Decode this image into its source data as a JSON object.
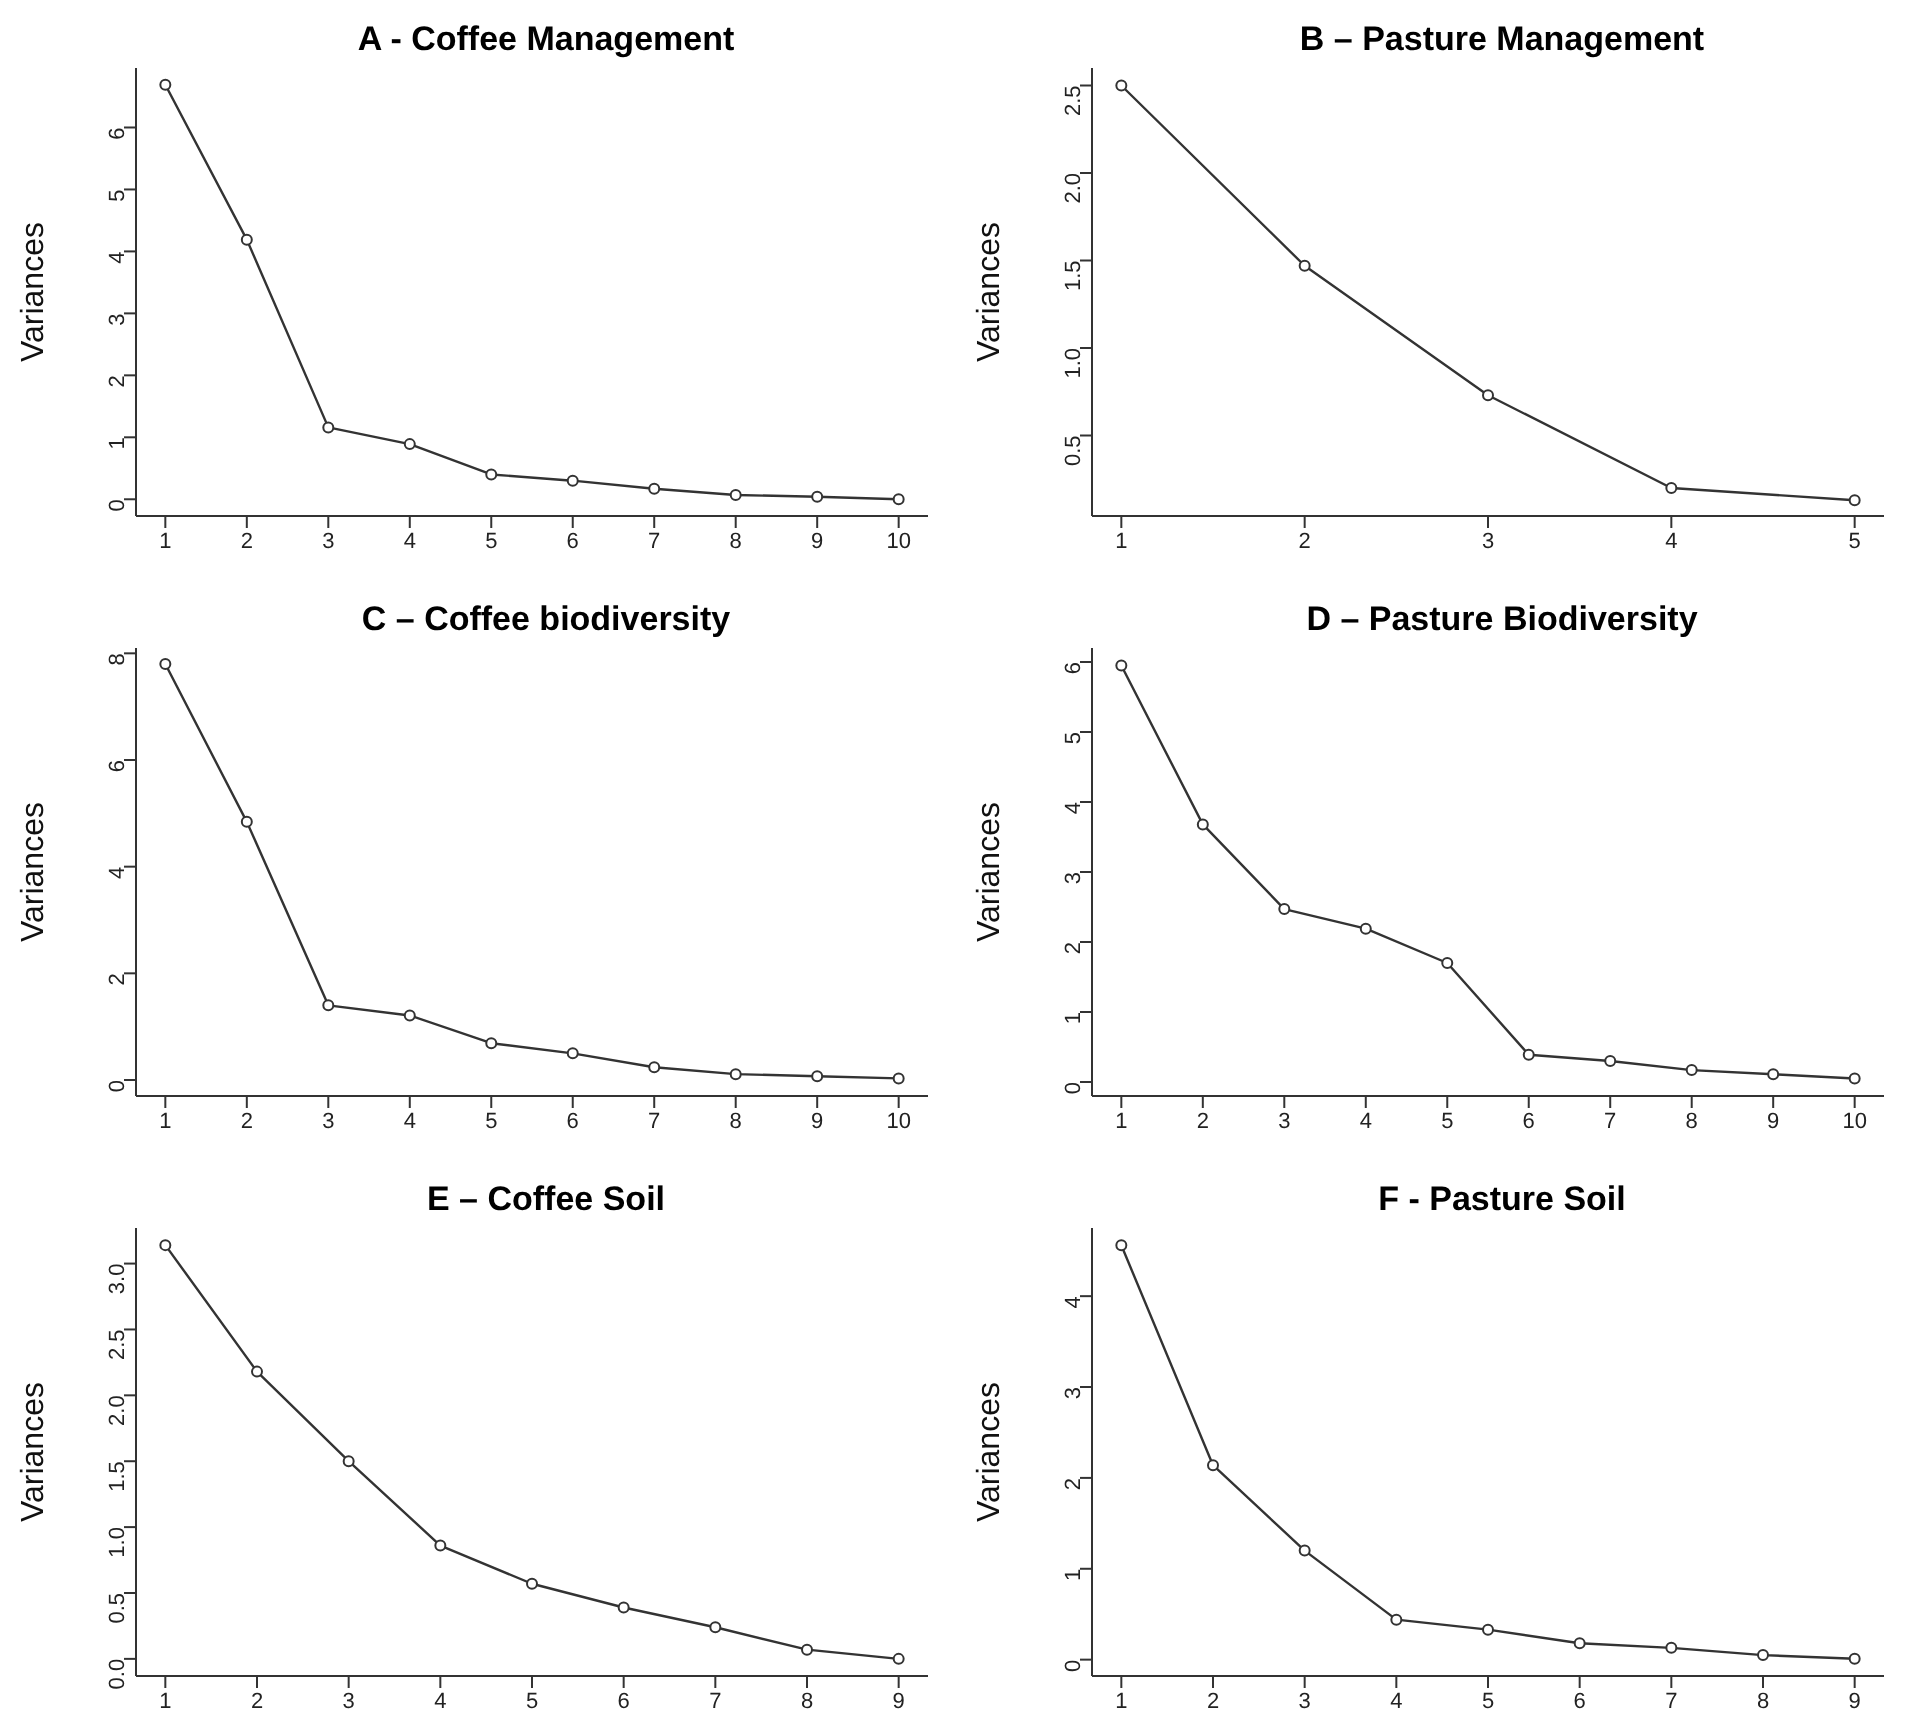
{
  "chart_data": [
    {
      "type": "line",
      "title": "A - Coffee Management",
      "ylabel": "Variances",
      "x": [
        1,
        2,
        3,
        4,
        5,
        6,
        7,
        8,
        9,
        10
      ],
      "values": [
        6.69,
        4.19,
        1.16,
        0.89,
        0.4,
        0.3,
        0.17,
        0.07,
        0.04,
        0.0
      ],
      "color": "#333333",
      "marker": "circle",
      "xlim": [
        0.64,
        10.36
      ],
      "xticks": [
        1,
        2,
        3,
        4,
        5,
        6,
        7,
        8,
        9,
        10
      ],
      "ylim": [
        -0.27,
        6.96
      ],
      "yticks": [
        0,
        1,
        2,
        3,
        4,
        5,
        6
      ]
    },
    {
      "type": "line",
      "title": "B – Pasture Management",
      "ylabel": "Variances",
      "x": [
        1,
        2,
        3,
        4,
        5
      ],
      "values": [
        2.5,
        1.47,
        0.73,
        0.2,
        0.13
      ],
      "color": "#333333",
      "marker": "circle",
      "xlim": [
        0.84,
        5.16
      ],
      "xticks": [
        1,
        2,
        3,
        4,
        5
      ],
      "ylim": [
        0.04,
        2.6
      ],
      "yticks": [
        0.5,
        {
          "value": 1,
          "label": "1.0"
        },
        1.5,
        {
          "value": 2,
          "label": "2.0"
        },
        2.5
      ]
    },
    {
      "type": "line",
      "title": "C – Coffee biodiversity",
      "ylabel": "Variances",
      "x": [
        1,
        2,
        3,
        4,
        5,
        6,
        7,
        8,
        9,
        10
      ],
      "values": [
        7.8,
        4.84,
        1.4,
        1.21,
        0.69,
        0.5,
        0.24,
        0.11,
        0.07,
        0.03
      ],
      "color": "#333333",
      "marker": "circle",
      "xlim": [
        0.64,
        10.36
      ],
      "xticks": [
        1,
        2,
        3,
        4,
        5,
        6,
        7,
        8,
        9,
        10
      ],
      "ylim": [
        -0.3,
        8.1
      ],
      "yticks": [
        0,
        2,
        4,
        6,
        8
      ]
    },
    {
      "type": "line",
      "title": "D – Pasture Biodiversity",
      "ylabel": "Variances",
      "x": [
        1,
        2,
        3,
        4,
        5,
        6,
        7,
        8,
        9,
        10
      ],
      "values": [
        5.95,
        3.68,
        2.47,
        2.19,
        1.7,
        0.39,
        0.3,
        0.17,
        0.11,
        0.05
      ],
      "color": "#333333",
      "marker": "circle",
      "xlim": [
        0.64,
        10.36
      ],
      "xticks": [
        1,
        2,
        3,
        4,
        5,
        6,
        7,
        8,
        9,
        10
      ],
      "ylim": [
        -0.2,
        6.2
      ],
      "yticks": [
        0,
        1,
        2,
        3,
        4,
        5,
        6
      ]
    },
    {
      "type": "line",
      "title": "E – Coffee Soil",
      "ylabel": "Variances",
      "x": [
        1,
        2,
        3,
        4,
        5,
        6,
        7,
        8,
        9
      ],
      "values": [
        3.14,
        2.18,
        1.5,
        0.86,
        0.57,
        0.39,
        0.24,
        0.07,
        0.0
      ],
      "color": "#333333",
      "marker": "circle",
      "xlim": [
        0.68,
        9.32
      ],
      "xticks": [
        1,
        2,
        3,
        4,
        5,
        6,
        7,
        8,
        9
      ],
      "ylim": [
        -0.13,
        3.27
      ],
      "yticks": [
        {
          "value": 0,
          "label": "0.0"
        },
        0.5,
        {
          "value": 1,
          "label": "1.0"
        },
        1.5,
        {
          "value": 2,
          "label": "2.0"
        },
        2.5,
        {
          "value": 3,
          "label": "3.0"
        }
      ]
    },
    {
      "type": "line",
      "title": "F - Pasture Soil",
      "ylabel": "Variances",
      "x": [
        1,
        2,
        3,
        4,
        5,
        6,
        7,
        8,
        9
      ],
      "values": [
        4.56,
        2.14,
        1.2,
        0.44,
        0.33,
        0.18,
        0.13,
        0.05,
        0.01
      ],
      "color": "#333333",
      "marker": "circle",
      "xlim": [
        0.68,
        9.32
      ],
      "xticks": [
        1,
        2,
        3,
        4,
        5,
        6,
        7,
        8,
        9
      ],
      "ylim": [
        -0.18,
        4.75
      ],
      "yticks": [
        0,
        1,
        2,
        3,
        4
      ]
    }
  ]
}
